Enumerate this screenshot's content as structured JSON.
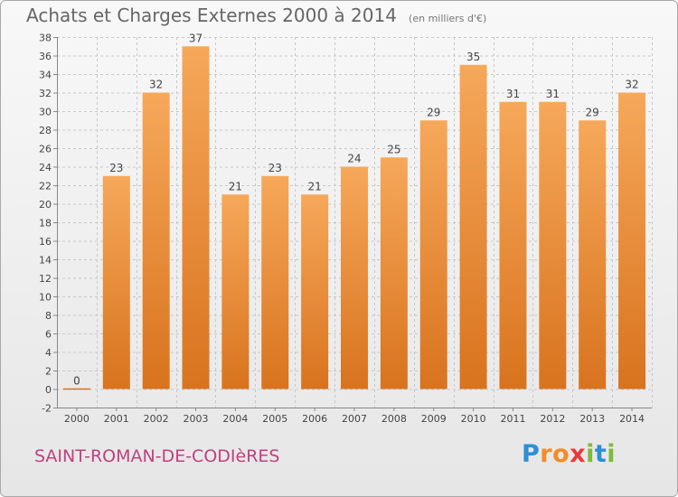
{
  "header": {
    "title": "Achats et Charges Externes 2000 à 2014",
    "unit": "(en milliers d'€)"
  },
  "footer": {
    "commune": "SAINT-ROMAN-DE-CODIèRES"
  },
  "logo": {
    "text": "Proxiti",
    "letters": [
      {
        "ch": "P",
        "color": "#2e8fd6"
      },
      {
        "ch": "r",
        "color": "#f28c28"
      },
      {
        "ch": "o",
        "color": "#f28c28"
      },
      {
        "ch": "x",
        "color": "#e83a3a"
      },
      {
        "ch": "i",
        "color": "#7dbb3c"
      },
      {
        "ch": "t",
        "color": "#2e8fd6"
      },
      {
        "ch": "i",
        "color": "#7dbb3c"
      }
    ]
  },
  "chart_data": {
    "type": "bar",
    "title": "Achats et Charges Externes 2000 à 2014",
    "xlabel": "",
    "ylabel": "",
    "categories": [
      "2000",
      "2001",
      "2002",
      "2003",
      "2004",
      "2005",
      "2006",
      "2007",
      "2008",
      "2009",
      "2010",
      "2011",
      "2012",
      "2013",
      "2014"
    ],
    "values": [
      0,
      23,
      32,
      37,
      21,
      23,
      21,
      24,
      25,
      29,
      35,
      31,
      31,
      29,
      32
    ],
    "ylim": [
      -2,
      38
    ],
    "ytick_step": 2,
    "grid": true,
    "bar_color_light": "#f6a85a",
    "bar_color_dark": "#d8731e"
  }
}
